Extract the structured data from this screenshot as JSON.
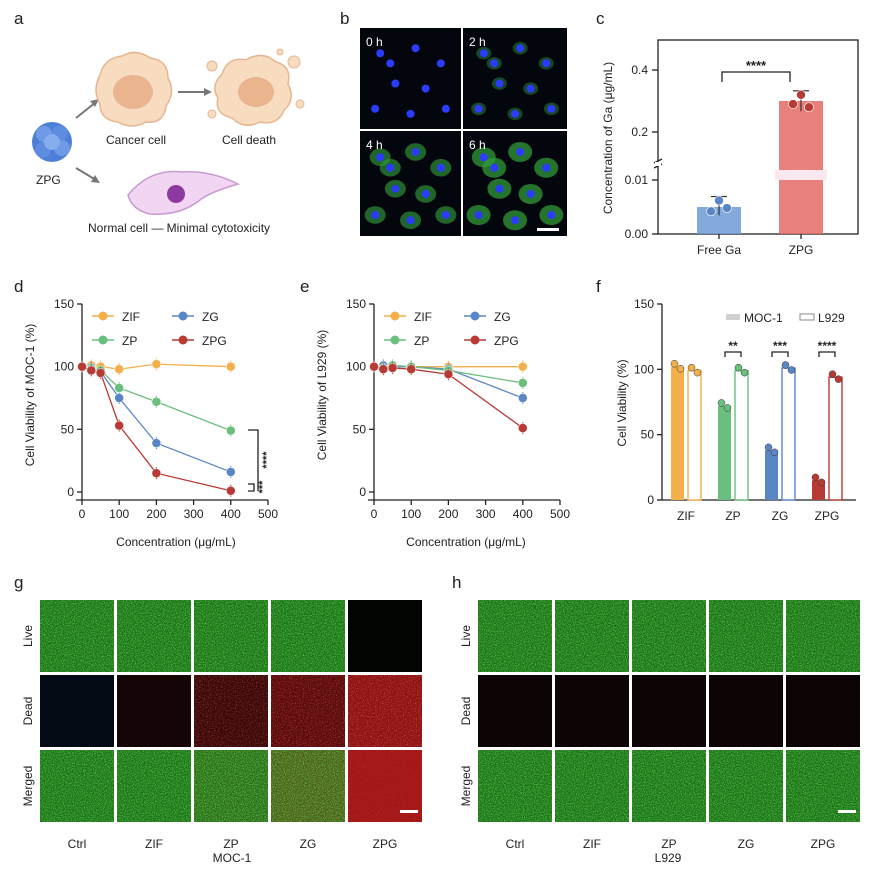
{
  "panel_labels": {
    "a": "a",
    "b": "b",
    "c": "c",
    "d": "d",
    "e": "e",
    "f": "f",
    "g": "g",
    "h": "h"
  },
  "panel_a": {
    "cancer_cell": "Cancer cell",
    "cell_death": "Cell death",
    "zpg": "ZPG",
    "normal_cell": "Normal cell — Minimal cytotoxicity"
  },
  "panel_b": {
    "timepoints": [
      "0 h",
      "2 h",
      "4 h",
      "6 h"
    ]
  },
  "colors": {
    "ZIF": "#F2AF4A",
    "ZG": "#5B86C6",
    "ZP": "#6BBF7E",
    "ZPG": "#B83A35",
    "freeGa": "#6E9BD6",
    "zpgBar": "#E46A66"
  },
  "chart_data": [
    {
      "panel": "c",
      "type": "bar",
      "categories": [
        "Free Ga",
        "ZPG"
      ],
      "values": [
        0.005,
        0.3
      ],
      "points": [
        [
          0.0042,
          0.0062,
          0.0048
        ],
        [
          0.29,
          0.32,
          0.28
        ]
      ],
      "ylabel": "Concentration of Ga  (μg/mL)",
      "ytick_labels": [
        "0.00",
        "0.01",
        "0.2",
        "0.4"
      ],
      "significance": "****"
    },
    {
      "panel": "d",
      "type": "line",
      "xlabel": "Concentration (μg/mL)",
      "ylabel": "Cell Viability of MOC-1 (%)",
      "xlim": [
        0,
        500
      ],
      "ylim": [
        0,
        150
      ],
      "xticks": [
        "0",
        "100",
        "200",
        "300",
        "400",
        "500"
      ],
      "yticks": [
        "0",
        "50",
        "100",
        "150"
      ],
      "x": [
        0,
        25,
        50,
        100,
        200,
        400
      ],
      "series": [
        {
          "name": "ZIF",
          "values": [
            100,
            101,
            100,
            98,
            102,
            100
          ]
        },
        {
          "name": "ZG",
          "values": [
            100,
            99,
            96,
            75,
            39,
            16
          ]
        },
        {
          "name": "ZP",
          "values": [
            100,
            98,
            97,
            83,
            72,
            49
          ]
        },
        {
          "name": "ZPG",
          "values": [
            100,
            97,
            95,
            53,
            15,
            1
          ]
        }
      ],
      "significance": [
        "***",
        "****"
      ]
    },
    {
      "panel": "e",
      "type": "line",
      "xlabel": "Concentration (μg/mL)",
      "ylabel": "Cell Viability of L929 (%)",
      "xlim": [
        0,
        500
      ],
      "ylim": [
        0,
        150
      ],
      "xticks": [
        "0",
        "100",
        "200",
        "300",
        "400",
        "500"
      ],
      "yticks": [
        "0",
        "50",
        "100",
        "150"
      ],
      "x": [
        0,
        25,
        50,
        100,
        200,
        400
      ],
      "series": [
        {
          "name": "ZIF",
          "values": [
            100,
            100,
            100,
            100,
            100,
            100
          ]
        },
        {
          "name": "ZG",
          "values": [
            100,
            101,
            100,
            100,
            98,
            75
          ]
        },
        {
          "name": "ZP",
          "values": [
            100,
            99,
            101,
            100,
            97,
            87
          ]
        },
        {
          "name": "ZPG",
          "values": [
            100,
            98,
            99,
            98,
            94,
            51
          ]
        }
      ]
    },
    {
      "panel": "f",
      "type": "bar",
      "categories": [
        "ZIF",
        "ZP",
        "ZG",
        "ZPG"
      ],
      "ylabel": "Cell Viability (%)",
      "ylim": [
        0,
        150
      ],
      "yticks": [
        "0",
        "50",
        "100",
        "150"
      ],
      "series": [
        {
          "name": "MOC-1",
          "values": [
            102,
            72,
            38,
            15
          ]
        },
        {
          "name": "L929",
          "values": [
            99,
            99,
            101,
            94
          ]
        }
      ],
      "significance": [
        "",
        "**",
        "***",
        "****"
      ]
    }
  ],
  "panel_g": {
    "rows": [
      "Live",
      "Dead",
      "Merged"
    ],
    "columns": [
      "Ctrl",
      "ZIF",
      "ZP",
      "ZG",
      "ZPG"
    ],
    "cell_line": "MOC-1"
  },
  "panel_h": {
    "rows": [
      "Live",
      "Dead",
      "Merged"
    ],
    "columns": [
      "Ctrl",
      "ZIF",
      "ZP",
      "ZG",
      "ZPG"
    ],
    "cell_line": "L929"
  }
}
